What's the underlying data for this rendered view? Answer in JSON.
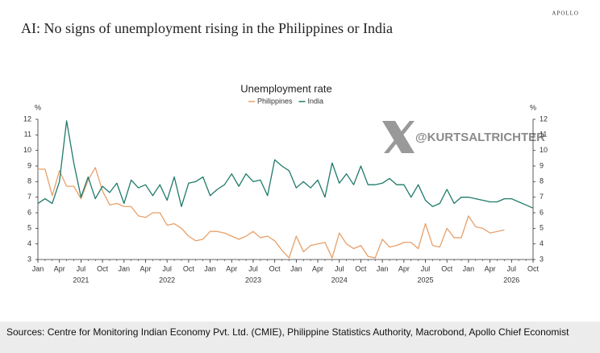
{
  "brand": "APOLLO",
  "watermark": "@KURTSALTRICHTER",
  "footer": "Sources: Centre for Monitoring Indian Economy Pvt. Ltd. (CMIE), Philippine Statistics Authority, Macrobond, Apollo Chief Economist",
  "chart_data": {
    "type": "line",
    "title": "AI: No signs of unemployment rising in the Philippines or India",
    "subtitle": "Unemployment rate",
    "y_unit": "%",
    "y2_unit": "%",
    "x": [
      "2021-01",
      "2021-02",
      "2021-03",
      "2021-04",
      "2021-05",
      "2021-06",
      "2021-07",
      "2021-08",
      "2021-09",
      "2021-10",
      "2021-11",
      "2021-12",
      "2022-01",
      "2022-02",
      "2022-03",
      "2022-04",
      "2022-05",
      "2022-06",
      "2022-07",
      "2022-08",
      "2022-09",
      "2022-10",
      "2022-11",
      "2022-12",
      "2023-01",
      "2023-02",
      "2023-03",
      "2023-04",
      "2023-05",
      "2023-06",
      "2023-07",
      "2023-08",
      "2023-09",
      "2023-10",
      "2023-11",
      "2023-12",
      "2024-01",
      "2024-02",
      "2024-03",
      "2024-04",
      "2024-05",
      "2024-06",
      "2024-07",
      "2024-08",
      "2024-09",
      "2024-10",
      "2024-11",
      "2024-12",
      "2025-01",
      "2025-02",
      "2025-03",
      "2025-04",
      "2025-05",
      "2025-06",
      "2025-07",
      "2025-08",
      "2025-09",
      "2025-10",
      "2025-11",
      "2025-12",
      "2026-01",
      "2026-02",
      "2026-03",
      "2026-04",
      "2026-05",
      "2026-06",
      "2026-07",
      "2026-08",
      "2026-09",
      "2026-10"
    ],
    "series": [
      {
        "name": "Philippines",
        "color": "#e8a06a",
        "values": [
          8.8,
          8.8,
          7.1,
          8.7,
          7.7,
          7.7,
          6.9,
          8.1,
          8.9,
          7.4,
          6.5,
          6.6,
          6.4,
          6.4,
          5.8,
          5.7,
          6.0,
          6.0,
          5.2,
          5.3,
          5.0,
          4.5,
          4.2,
          4.3,
          4.8,
          4.8,
          4.7,
          4.5,
          4.3,
          4.5,
          4.8,
          4.4,
          4.5,
          4.2,
          3.6,
          3.1,
          4.5,
          3.5,
          3.9,
          4.0,
          4.1,
          3.1,
          4.7,
          4.0,
          3.7,
          3.9,
          3.2,
          3.1,
          4.3,
          3.8,
          3.9,
          4.1,
          4.1,
          3.7,
          5.3,
          3.9,
          3.8,
          5.0,
          4.4,
          4.4,
          5.8,
          5.1,
          5.0,
          4.7,
          4.8,
          4.9,
          null,
          null,
          null,
          null
        ]
      },
      {
        "name": "India",
        "color": "#1f7a6a",
        "values": [
          6.6,
          6.9,
          6.6,
          8.0,
          11.9,
          9.2,
          7.0,
          8.3,
          6.9,
          7.7,
          7.3,
          7.9,
          6.6,
          8.1,
          7.6,
          7.8,
          7.1,
          7.8,
          6.8,
          8.3,
          6.4,
          7.9,
          8.0,
          8.3,
          7.1,
          7.5,
          7.8,
          8.5,
          7.7,
          8.5,
          8.0,
          8.1,
          7.1,
          9.4,
          9.0,
          8.7,
          7.6,
          8.0,
          7.6,
          8.1,
          7.0,
          9.2,
          7.9,
          8.5,
          7.8,
          9.0,
          7.8,
          7.8,
          7.9,
          8.2,
          7.8,
          7.8,
          7.0,
          7.8,
          6.8,
          6.4,
          6.6,
          7.5,
          6.6,
          7.0,
          7.0,
          6.9,
          6.8,
          6.7,
          6.7,
          6.9,
          6.9,
          6.7,
          6.5,
          6.3
        ]
      }
    ],
    "xticks": [
      {
        "value": "2021-01",
        "label": "Jan"
      },
      {
        "value": "2021-04",
        "label": "Apr"
      },
      {
        "value": "2021-07",
        "label": "Jul"
      },
      {
        "value": "2021-10",
        "label": "Oct"
      },
      {
        "value": "2022-01",
        "label": "Jan"
      },
      {
        "value": "2022-04",
        "label": "Apr"
      },
      {
        "value": "2022-07",
        "label": "Jul"
      },
      {
        "value": "2022-10",
        "label": "Oct"
      },
      {
        "value": "2023-01",
        "label": "Jan"
      },
      {
        "value": "2023-04",
        "label": "Apr"
      },
      {
        "value": "2023-07",
        "label": "Jul"
      },
      {
        "value": "2023-10",
        "label": "Oct"
      },
      {
        "value": "2024-01",
        "label": "Jan"
      },
      {
        "value": "2024-04",
        "label": "Apr"
      },
      {
        "value": "2024-07",
        "label": "Jul"
      },
      {
        "value": "2024-10",
        "label": "Oct"
      },
      {
        "value": "2025-01",
        "label": "Jan"
      },
      {
        "value": "2025-04",
        "label": "Apr"
      },
      {
        "value": "2025-07",
        "label": "Jul"
      },
      {
        "value": "2025-10",
        "label": "Oct"
      },
      {
        "value": "2026-01",
        "label": "Jan"
      },
      {
        "value": "2026-04",
        "label": "Apr"
      },
      {
        "value": "2026-07",
        "label": "Jul"
      },
      {
        "value": "2026-10",
        "label": "Oct"
      }
    ],
    "year_labels": [
      {
        "value": "2021-07",
        "label": "2021"
      },
      {
        "value": "2022-07",
        "label": "2022"
      },
      {
        "value": "2023-07",
        "label": "2023"
      },
      {
        "value": "2024-07",
        "label": "2024"
      },
      {
        "value": "2025-07",
        "label": "2025"
      },
      {
        "value": "2026-07",
        "label": "2026"
      }
    ],
    "ylim": [
      3,
      12
    ],
    "yticks": [
      3,
      4,
      5,
      6,
      7,
      8,
      9,
      10,
      11,
      12
    ],
    "y2lim": [
      3,
      12
    ],
    "y2ticks": [
      3,
      4,
      5,
      6,
      7,
      8,
      9,
      10,
      11,
      12
    ],
    "grid": false
  }
}
